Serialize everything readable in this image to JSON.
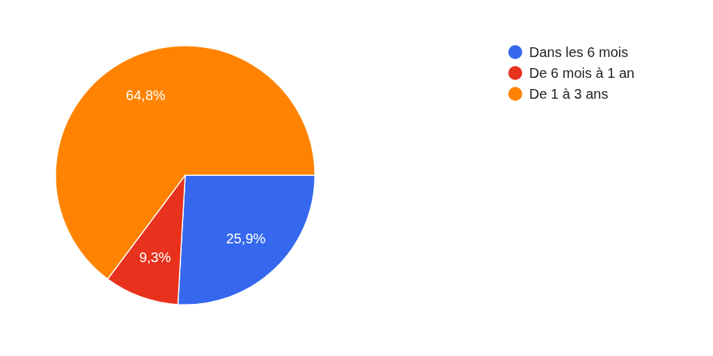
{
  "chart_data": {
    "type": "pie",
    "categories": [
      "Dans les 6 mois",
      "De 6 mois à 1 an",
      "De 1 à 3 ans"
    ],
    "values": [
      25.9,
      9.3,
      64.8
    ],
    "colors": [
      "#3568ee",
      "#e8321d",
      "#ff8300"
    ],
    "value_labels": [
      "25,9%",
      "9,3%",
      "64,8%"
    ],
    "legend": "top right"
  }
}
